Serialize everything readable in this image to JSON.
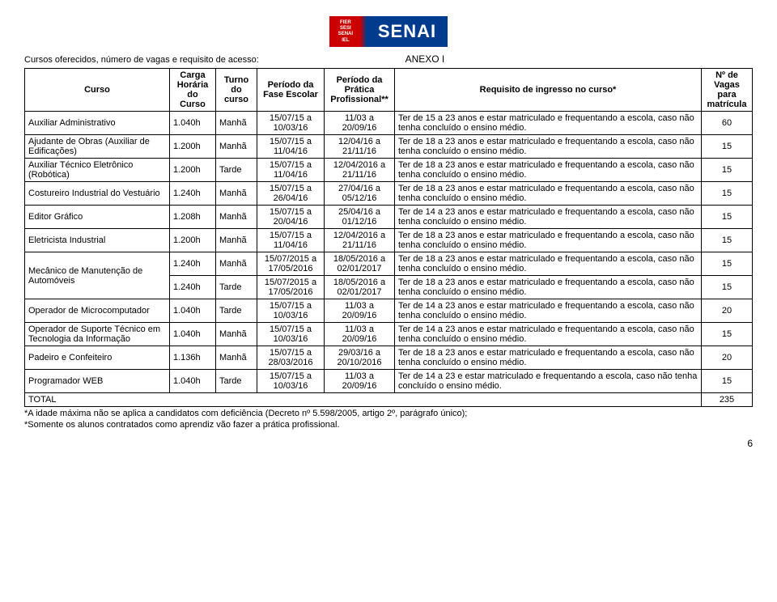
{
  "logo": {
    "lines": [
      "FIER",
      "SESI",
      "SENAI",
      "IEL"
    ],
    "brand": "SENAI"
  },
  "title_anexo": "ANEXO I",
  "title_left": "Cursos oferecidos, número de vagas e requisito de acesso:",
  "headers": {
    "curso": "Curso",
    "carga": "Carga Horária do Curso",
    "turno": "Turno do curso",
    "fase": "Período da Fase Escolar",
    "pratica": "Período da Prática Profissional**",
    "requisito": "Requisito de ingresso no curso*",
    "vagas": "Nº de Vagas para matrícula"
  },
  "rows": [
    {
      "curso": "Auxiliar Administrativo",
      "carga": "1.040h",
      "turno": "Manhã",
      "fase": "15/07/15 a 10/03/16",
      "prat": "11/03 a 20/09/16",
      "req": "Ter de 15 a 23 anos e estar matriculado e frequentando a escola, caso não tenha concluído o ensino médio.",
      "vagas": "60",
      "rs": "1"
    },
    {
      "curso": "Ajudante de Obras (Auxiliar de Edificações)",
      "carga": "1.200h",
      "turno": "Manhã",
      "fase": "15/07/15 a 11/04/16",
      "prat": "12/04/16 a 21/11/16",
      "req": "Ter de 18 a 23 anos e estar matriculado e frequentando a escola, caso não tenha concluído o ensino médio.",
      "vagas": "15",
      "rs": "1"
    },
    {
      "curso": "Auxiliar Técnico Eletrônico (Robótica)",
      "carga": "1.200h",
      "turno": "Tarde",
      "fase": "15/07/15 a 11/04/16",
      "prat": "12/04/2016 a 21/11/16",
      "req": "Ter de 18 a 23 anos e estar matriculado e frequentando a escola, caso não tenha concluído o ensino médio.",
      "vagas": "15",
      "rs": "1"
    },
    {
      "curso": "Costureiro Industrial do Vestuário",
      "carga": "1.240h",
      "turno": "Manhã",
      "fase": "15/07/15 a 26/04/16",
      "prat": "27/04/16 a 05/12/16",
      "req": "Ter de 18 a 23 anos e estar matriculado e frequentando a escola, caso não tenha concluído o ensino médio.",
      "vagas": "15",
      "rs": "1"
    },
    {
      "curso": "Editor Gráfico",
      "carga": "1.208h",
      "turno": "Manhã",
      "fase": "15/07/15 a 20/04/16",
      "prat": "25/04/16 a 01/12/16",
      "req": "Ter de 14 a 23 anos e estar matriculado e frequentando a escola, caso não tenha concluído o ensino médio.",
      "vagas": "15",
      "rs": "1"
    },
    {
      "curso": "Eletricista Industrial",
      "carga": "1.200h",
      "turno": "Manhã",
      "fase": "15/07/15 a 11/04/16",
      "prat": "12/04/2016 a 21/11/16",
      "req": "Ter de 18 a 23 anos e estar matriculado e frequentando a escola, caso não tenha concluído o ensino médio.",
      "vagas": "15",
      "rs": "1"
    },
    {
      "curso": "Mecânico de Manutenção de Automóveis",
      "carga": "1.240h",
      "turno": "Manhã",
      "fase": "15/07/2015 a 17/05/2016",
      "prat": "18/05/2016 a 02/01/2017",
      "req": "Ter de 18 a 23 anos e estar matriculado e frequentando a escola, caso não tenha concluído o ensino médio.",
      "vagas": "15",
      "rs": "2"
    },
    {
      "curso": "",
      "carga": "1.240h",
      "turno": "Tarde",
      "fase": "15/07/2015 a 17/05/2016",
      "prat": "18/05/2016 a 02/01/2017",
      "req": "Ter de 18 a 23 anos e estar matriculado e frequentando a escola, caso não tenha concluído o ensino médio.",
      "vagas": "15",
      "rs": "0"
    },
    {
      "curso": "Operador de Microcomputador",
      "carga": "1.040h",
      "turno": "Tarde",
      "fase": "15/07/15 a 10/03/16",
      "prat": "11/03 a 20/09/16",
      "req": "Ter de 14 a 23 anos e estar matriculado e frequentando a escola, caso não tenha concluído o ensino médio.",
      "vagas": "20",
      "rs": "1"
    },
    {
      "curso": "Operador de Suporte Técnico em Tecnologia da Informação",
      "carga": "1.040h",
      "turno": "Manhã",
      "fase": "15/07/15 a 10/03/16",
      "prat": "11/03 a 20/09/16",
      "req": "Ter de 14 a 23 anos e estar matriculado e frequentando a escola, caso não tenha concluído o ensino médio.",
      "vagas": "15",
      "rs": "1"
    },
    {
      "curso": "Padeiro e Confeiteiro",
      "carga": "1.136h",
      "turno": "Manhã",
      "fase": "15/07/15 a 28/03/2016",
      "prat": "29/03/16 a 20/10/2016",
      "req": "Ter de 18 a 23 anos e estar matriculado e frequentando a escola, caso não tenha concluído o ensino médio.",
      "vagas": "20",
      "rs": "1"
    },
    {
      "curso": "Programador WEB",
      "carga": "1.040h",
      "turno": "Tarde",
      "fase": "15/07/15 a 10/03/16",
      "prat": "11/03 a 20/09/16",
      "req": "Ter de 14 a 23 e estar matriculado e frequentando a escola, caso não tenha concluído o ensino médio.",
      "vagas": "15",
      "rs": "1"
    }
  ],
  "total_label": "TOTAL",
  "total_value": "235",
  "note1": "*A idade máxima não se aplica a candidatos com deficiência (Decreto nº 5.598/2005, artigo 2º, parágrafo único);",
  "note2": "*Somente os alunos contratados como aprendiz vão fazer a prática profissional.",
  "page": "6"
}
